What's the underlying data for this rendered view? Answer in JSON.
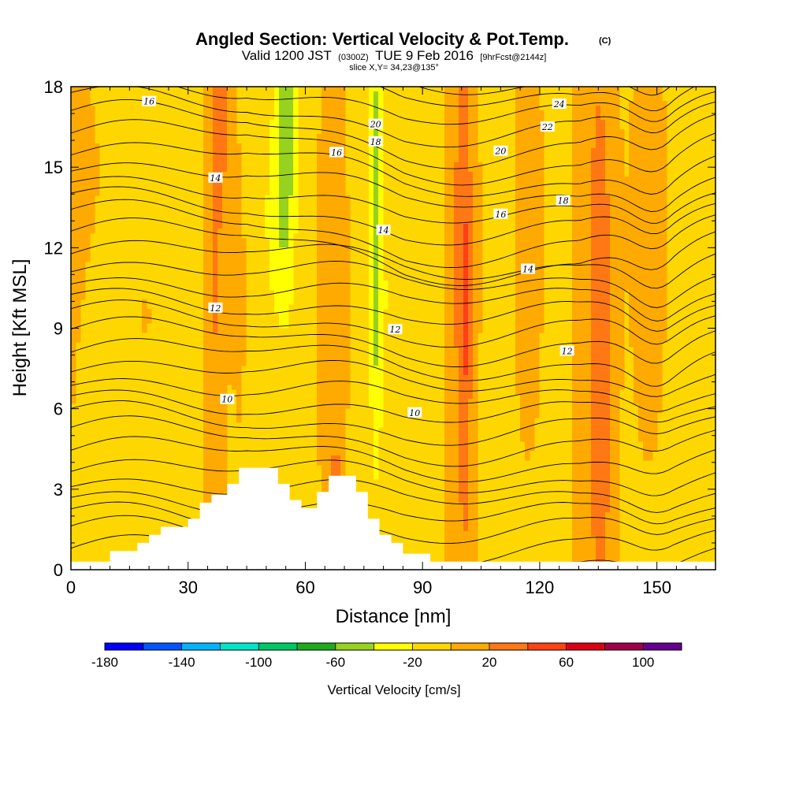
{
  "chart_data": {
    "type": "heatmap",
    "title": "Angled Section: Vertical Velocity & Pot.Temp.",
    "title_units": "(C)",
    "subtitle": {
      "prefix": "Valid 1200 JST",
      "zulu": "(0300Z)",
      "date": "TUE 9 Feb 2016",
      "forecast": "[9hrFcst@2144z]"
    },
    "slice_info": "slice X,Y= 34,23@135°",
    "xlabel": "Distance [nm]",
    "ylabel": "Height [Kft MSL]",
    "xlim": [
      0,
      165
    ],
    "ylim": [
      0,
      18
    ],
    "xticks": [
      "0",
      "30",
      "60",
      "90",
      "120",
      "150"
    ],
    "yticks": [
      "0",
      "3",
      "6",
      "9",
      "12",
      "15",
      "18"
    ],
    "terrain": [
      [
        0,
        0.3
      ],
      [
        10,
        0.3
      ],
      [
        10,
        0.7
      ],
      [
        17,
        0.7
      ],
      [
        17,
        1.0
      ],
      [
        20,
        1.0
      ],
      [
        20,
        1.3
      ],
      [
        23,
        1.3
      ],
      [
        23,
        1.6
      ],
      [
        30,
        1.6
      ],
      [
        30,
        1.9
      ],
      [
        33,
        1.9
      ],
      [
        33,
        2.5
      ],
      [
        36,
        2.5
      ],
      [
        36,
        2.8
      ],
      [
        40,
        2.8
      ],
      [
        40,
        3.2
      ],
      [
        43,
        3.2
      ],
      [
        43,
        3.8
      ],
      [
        53,
        3.8
      ],
      [
        53,
        3.2
      ],
      [
        56,
        3.2
      ],
      [
        56,
        2.6
      ],
      [
        59,
        2.6
      ],
      [
        59,
        2.3
      ],
      [
        63,
        2.3
      ],
      [
        63,
        2.9
      ],
      [
        66,
        2.9
      ],
      [
        66,
        3.5
      ],
      [
        73,
        3.5
      ],
      [
        73,
        2.9
      ],
      [
        76,
        2.9
      ],
      [
        76,
        1.9
      ],
      [
        79,
        1.9
      ],
      [
        79,
        1.3
      ],
      [
        82,
        1.3
      ],
      [
        82,
        1.0
      ],
      [
        85,
        1.0
      ],
      [
        85,
        0.6
      ],
      [
        92,
        0.6
      ],
      [
        92,
        0.3
      ],
      [
        165,
        0.3
      ]
    ],
    "colorbar": {
      "label": "Vertical Velocity [cm/s]",
      "min": -180,
      "max": 120,
      "step": 20,
      "tick_labels": [
        "-180",
        "-140",
        "-100",
        "-60",
        "-20",
        "20",
        "60",
        "100"
      ],
      "tick_values": [
        -180,
        -140,
        -100,
        -60,
        -20,
        20,
        60,
        100
      ],
      "colors": [
        "#0000ff",
        "#0055ff",
        "#00b4ff",
        "#00e6c8",
        "#00c864",
        "#1eaa1e",
        "#96d21e",
        "#ffff00",
        "#ffd700",
        "#ffaa00",
        "#ff7814",
        "#ff4014",
        "#dc0014",
        "#a00046",
        "#64008c"
      ]
    },
    "contour_labels": [
      {
        "text": "16",
        "x": 20,
        "y": 17.45
      },
      {
        "text": "14",
        "x": 37,
        "y": 14.6
      },
      {
        "text": "12",
        "x": 37,
        "y": 9.75
      },
      {
        "text": "10",
        "x": 40,
        "y": 6.35
      },
      {
        "text": "20",
        "x": 78,
        "y": 16.6
      },
      {
        "text": "18",
        "x": 78,
        "y": 15.95
      },
      {
        "text": "16",
        "x": 68,
        "y": 15.55
      },
      {
        "text": "14",
        "x": 80,
        "y": 12.65
      },
      {
        "text": "12",
        "x": 83,
        "y": 8.95
      },
      {
        "text": "10",
        "x": 88,
        "y": 5.85
      },
      {
        "text": "24",
        "x": 125,
        "y": 17.35
      },
      {
        "text": "22",
        "x": 122,
        "y": 16.5
      },
      {
        "text": "20",
        "x": 110,
        "y": 15.6
      },
      {
        "text": "18",
        "x": 126,
        "y": 13.75
      },
      {
        "text": "16",
        "x": 110,
        "y": 13.25
      },
      {
        "text": "14",
        "x": 117,
        "y": 11.2
      },
      {
        "text": "12",
        "x": 127,
        "y": 8.15
      }
    ]
  }
}
